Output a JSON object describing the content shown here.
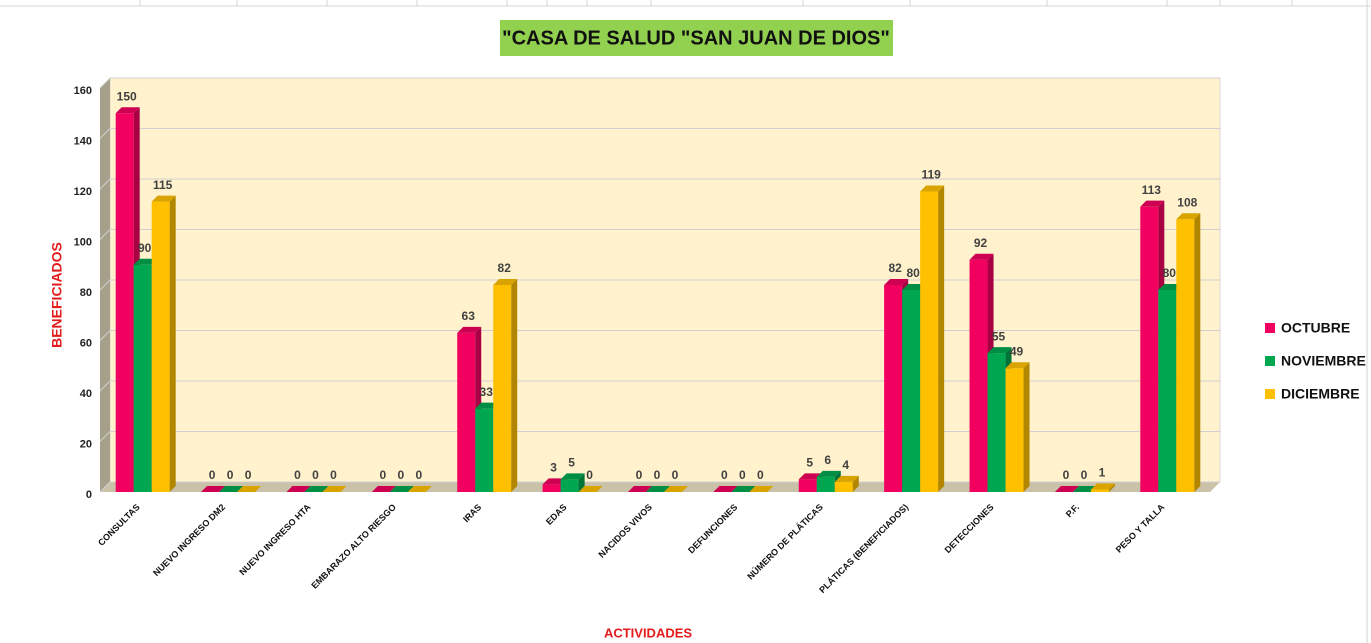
{
  "chart_data": {
    "type": "bar",
    "title": "\"CASA DE SALUD \"SAN  JUAN DE DIOS\"",
    "xlabel": "ACTIVIDADES",
    "ylabel": "BENEFICIADOS",
    "categories": [
      "CONSULTAS",
      "NUEVO INGRESO DM2",
      "NUEVO INGRESO HTA",
      "EMBARAZO ALTO RIESGO",
      "IRAS",
      "EDAS",
      "NACIDOS VIVOS",
      "DEFUNCIONES",
      "NÚMERO DE PLÁTICAS",
      "PLÁTICAS (BENEFICIADOS)",
      "DETECCIONES",
      "P.F.",
      "PESO Y TALLA"
    ],
    "series": [
      {
        "name": "OCTUBRE",
        "color": "#f2005f",
        "values": [
          150,
          0,
          0,
          0,
          63,
          3,
          0,
          0,
          5,
          82,
          92,
          0,
          113
        ]
      },
      {
        "name": "NOVIEMBRE",
        "color": "#00a650",
        "values": [
          90,
          0,
          0,
          0,
          33,
          5,
          0,
          0,
          6,
          80,
          55,
          0,
          80
        ]
      },
      {
        "name": "DICIEMBRE",
        "color": "#ffc000",
        "values": [
          115,
          0,
          0,
          0,
          82,
          0,
          0,
          0,
          4,
          119,
          49,
          1,
          108
        ]
      }
    ],
    "ylim": [
      0,
      160
    ],
    "yticks": [
      0,
      20,
      40,
      60,
      80,
      100,
      120,
      140,
      160
    ],
    "grid": true,
    "legend": "right"
  }
}
